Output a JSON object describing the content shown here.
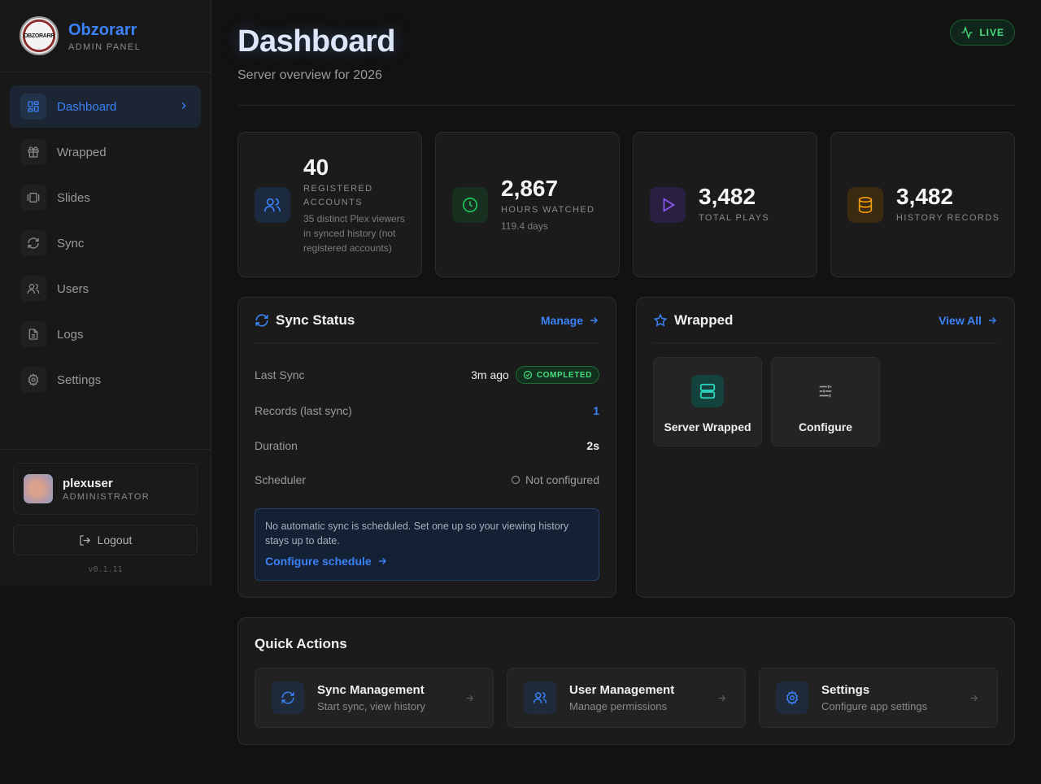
{
  "brand": {
    "name": "Obzorarr",
    "subtitle": "ADMIN PANEL",
    "logo_text": "OBZORARR"
  },
  "nav": {
    "items": [
      {
        "label": "Dashboard",
        "icon": "layout-grid-icon",
        "active": true
      },
      {
        "label": "Wrapped",
        "icon": "gift-icon"
      },
      {
        "label": "Slides",
        "icon": "slides-icon"
      },
      {
        "label": "Sync",
        "icon": "refresh-icon"
      },
      {
        "label": "Users",
        "icon": "users-icon"
      },
      {
        "label": "Logs",
        "icon": "file-text-icon"
      },
      {
        "label": "Settings",
        "icon": "gear-icon"
      }
    ]
  },
  "user": {
    "name": "plexuser",
    "role": "ADMINISTRATOR"
  },
  "logout_label": "Logout",
  "version": "v0.1.11",
  "header": {
    "title": "Dashboard",
    "subtitle": "Server overview for 2026",
    "live_label": "LIVE"
  },
  "stats": [
    {
      "value": "40",
      "label": "REGISTERED ACCOUNTS",
      "note": "35 distinct Plex viewers in synced history (not registered accounts)",
      "icon": "users-icon",
      "color": "#3b82f6"
    },
    {
      "value": "2,867",
      "label": "HOURS WATCHED",
      "note": "119.4 days",
      "icon": "clock-icon",
      "color": "#22c55e"
    },
    {
      "value": "3,482",
      "label": "TOTAL PLAYS",
      "icon": "play-icon",
      "color": "#8b5cf6"
    },
    {
      "value": "3,482",
      "label": "HISTORY RECORDS",
      "icon": "database-icon",
      "color": "#f59e0b"
    }
  ],
  "sync": {
    "title": "Sync Status",
    "manage_label": "Manage",
    "last_sync_label": "Last Sync",
    "last_sync_value": "3m ago",
    "status_badge": "COMPLETED",
    "records_label": "Records (last sync)",
    "records_value": "1",
    "duration_label": "Duration",
    "duration_value": "2s",
    "scheduler_label": "Scheduler",
    "scheduler_value": "Not configured",
    "notice_text": "No automatic sync is scheduled. Set one up so your viewing history stays up to date.",
    "notice_link": "Configure schedule"
  },
  "wrapped": {
    "title": "Wrapped",
    "view_all_label": "View All",
    "tiles": [
      {
        "label": "Server Wrapped",
        "icon": "server-icon"
      },
      {
        "label": "Configure",
        "icon": "sliders-icon"
      }
    ]
  },
  "quick_actions": {
    "title": "Quick Actions",
    "items": [
      {
        "title": "Sync Management",
        "subtitle": "Start sync, view history",
        "icon": "refresh-icon"
      },
      {
        "title": "User Management",
        "subtitle": "Manage permissions",
        "icon": "users-icon"
      },
      {
        "title": "Settings",
        "subtitle": "Configure app settings",
        "icon": "gear-icon"
      }
    ]
  },
  "colors": {
    "accent": "#3b82f6",
    "success": "#4ade80",
    "background": "#121212",
    "card": "#1b1b1b"
  }
}
